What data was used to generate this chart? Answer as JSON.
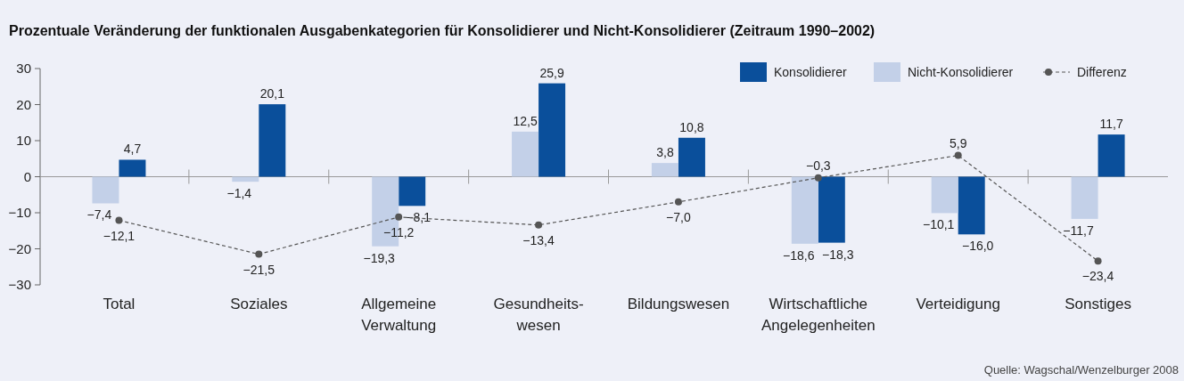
{
  "chart_data": {
    "type": "bar",
    "title": "Prozentuale Veränderung der funktionalen Ausgabenkategorien für Konsolidierer und Nicht-Konsolidierer (Zeitraum 1990–2002)",
    "categories": [
      "Total",
      "Soziales",
      "Allgemeine Verwaltung",
      "Gesundheits-wesen",
      "Bildungswesen",
      "Wirtschaftliche Angelegenheiten",
      "Verteidigung",
      "Sonstiges"
    ],
    "series": [
      {
        "name": "Konsolidierer",
        "color": "#0a4f9b",
        "values": [
          4.7,
          20.1,
          -8.1,
          25.9,
          10.8,
          -18.3,
          -16.0,
          11.7
        ],
        "value_labels": [
          "4,7",
          "20,1",
          "−8,1",
          "25,9",
          "10,8",
          "−18,3",
          "−16,0",
          "11,7"
        ]
      },
      {
        "name": "Nicht-Konsolidierer",
        "color": "#c3d0e8",
        "values": [
          -7.4,
          -1.4,
          -19.3,
          12.5,
          3.8,
          -18.6,
          -10.1,
          -11.7
        ],
        "value_labels": [
          "−7,4",
          "−1,4",
          "−19,3",
          "12,5",
          "3,8",
          "−18,6",
          "−10,1",
          "−11,7"
        ]
      },
      {
        "name": "Differenz",
        "type": "line",
        "color": "#555555",
        "line_style": "dashed",
        "marker": "circle",
        "values": [
          -12.1,
          -21.5,
          -11.2,
          -13.4,
          -7.0,
          -0.3,
          5.9,
          -23.4
        ],
        "value_labels": [
          "−12,1",
          "−21,5",
          "−11,2",
          "−13,4",
          "−7,0",
          "−0,3",
          "5,9",
          "−23,4"
        ]
      }
    ],
    "ylim": [
      -30,
      30
    ],
    "yticks": [
      {
        "value": -30,
        "label": "−30"
      },
      {
        "value": -20,
        "label": "−20"
      },
      {
        "value": -10,
        "label": "−10"
      },
      0,
      10,
      20,
      30
    ],
    "grid": false,
    "legend": "top right",
    "ref_lines": [
      {
        "axis": "y",
        "value": 0,
        "color": "#999999"
      }
    ],
    "annotations": [
      "Quelle: Wagschal/Wenzelburger 2008"
    ]
  }
}
